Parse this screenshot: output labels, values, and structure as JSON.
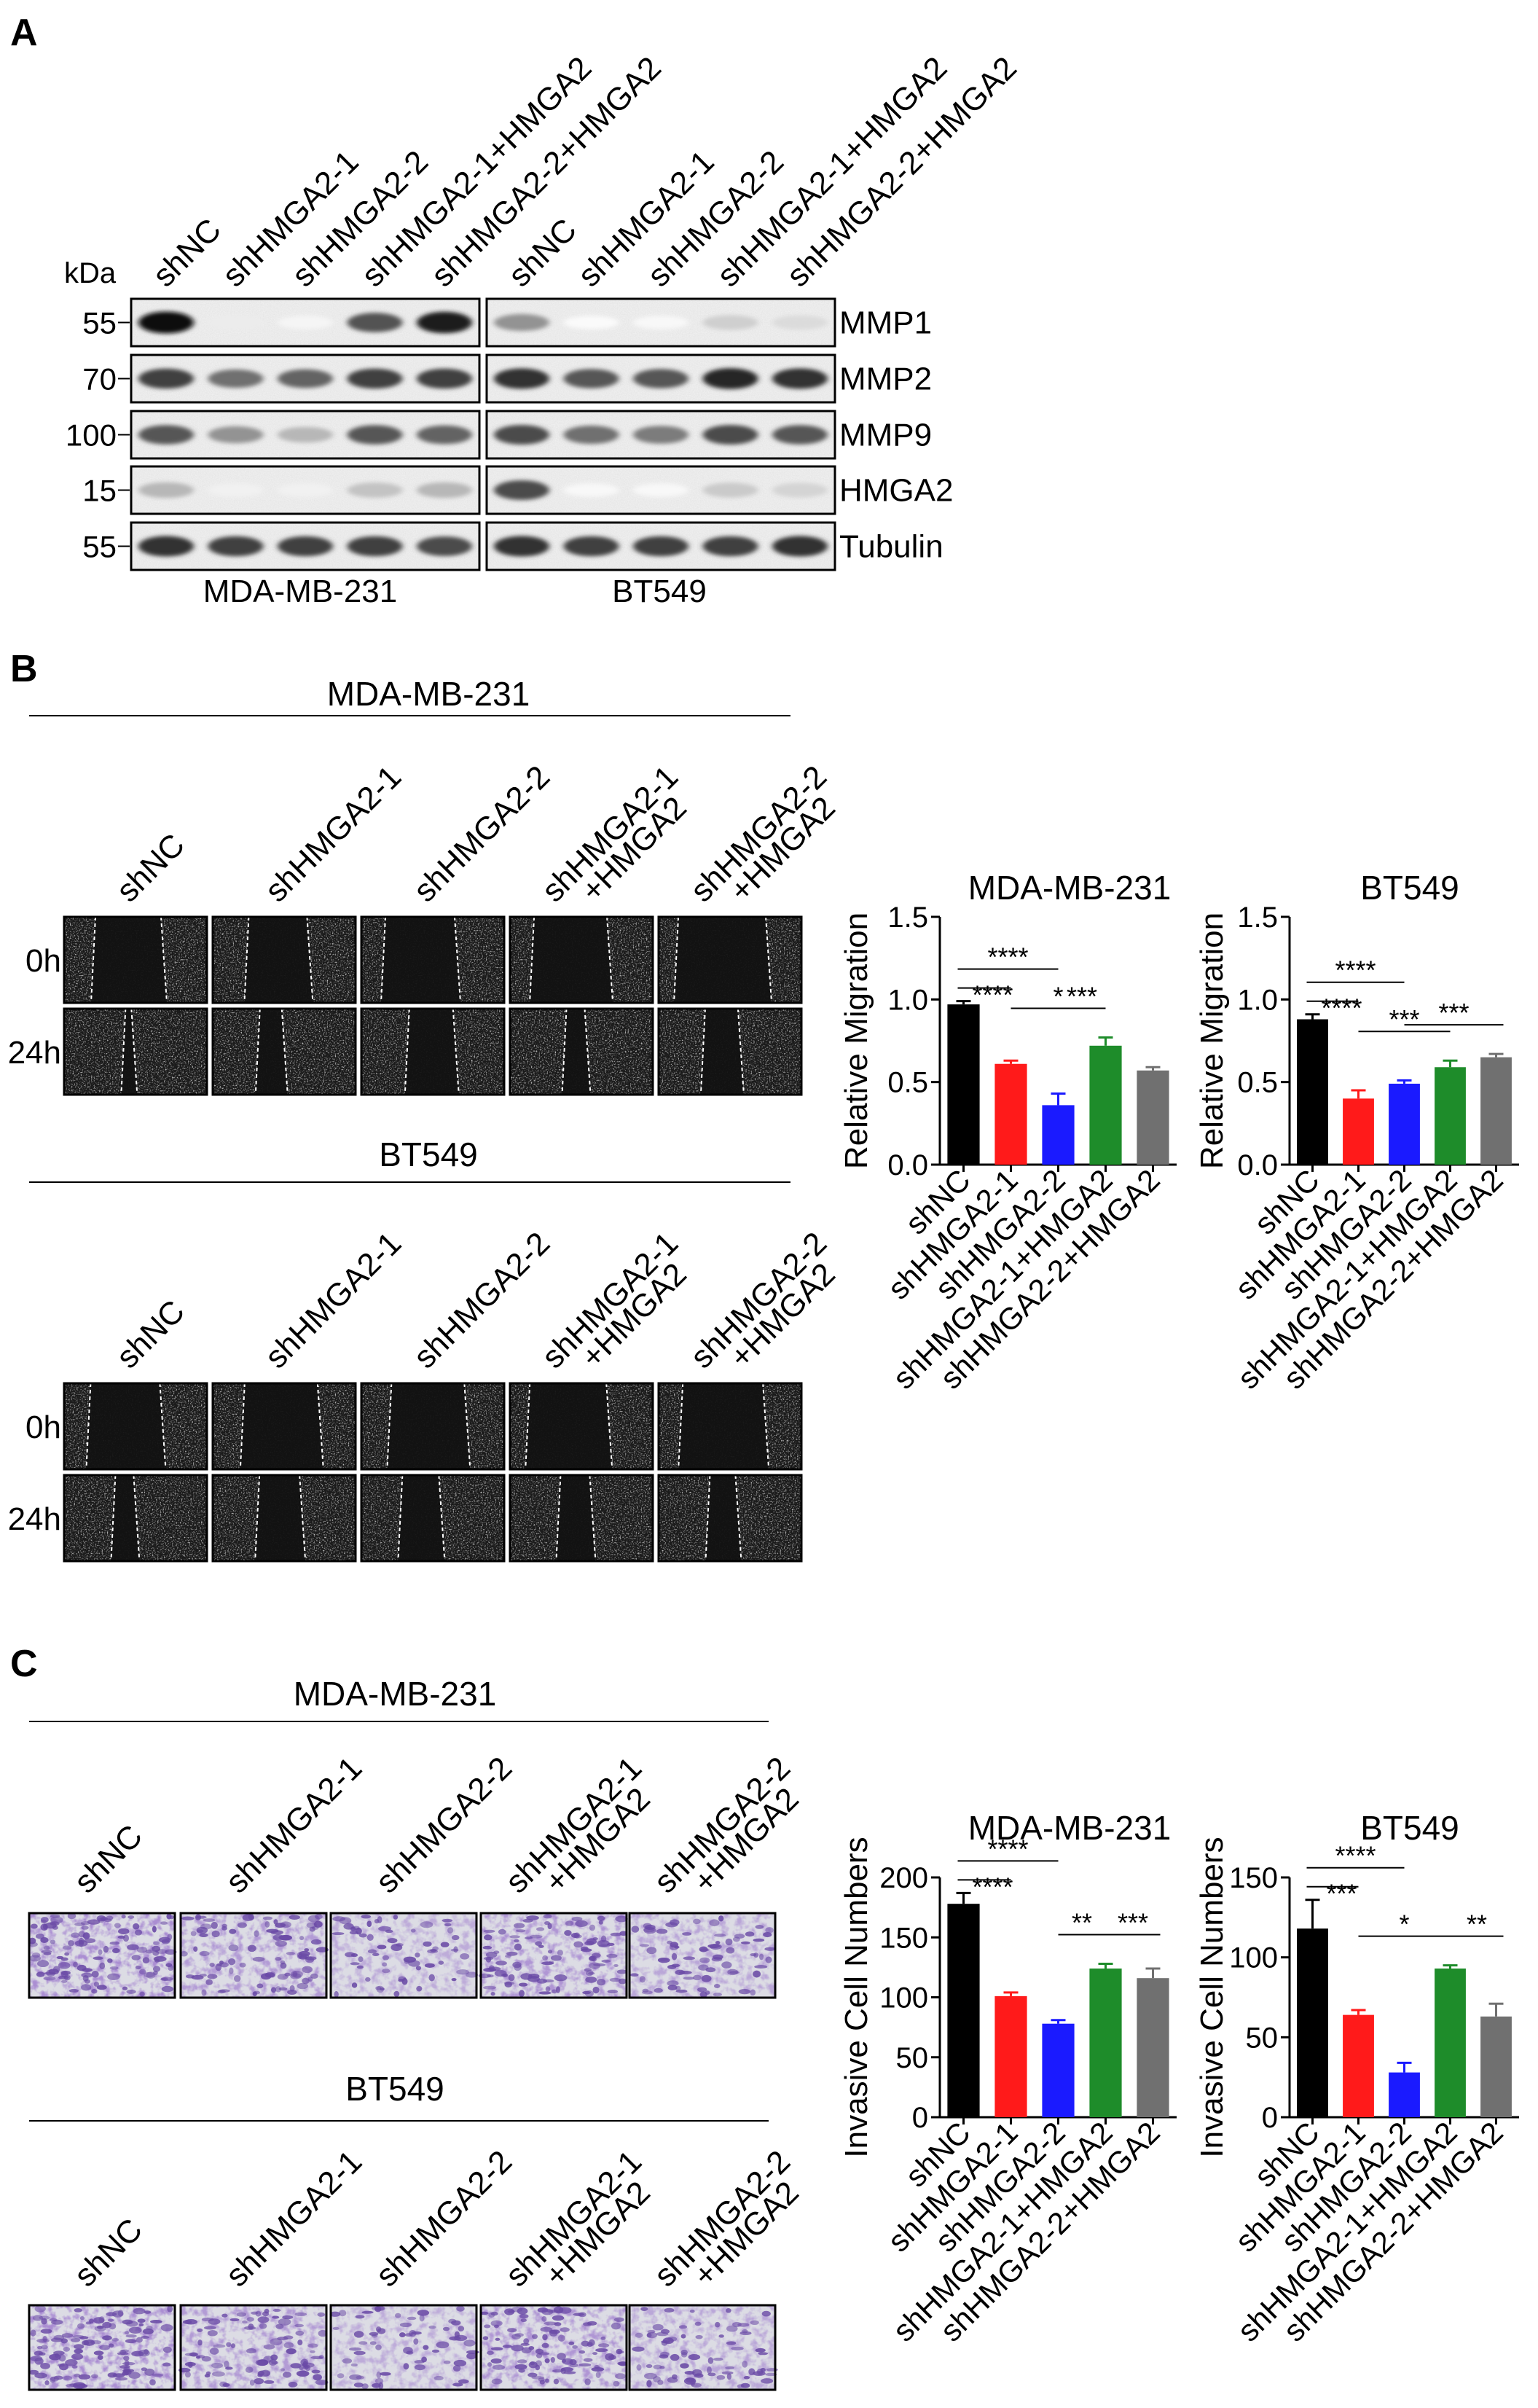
{
  "panel_labels": {
    "a": "A",
    "b": "B",
    "c": "C"
  },
  "western": {
    "kda_label": "kDa",
    "lanes": [
      "shNC",
      "shHMGA2-1",
      "shHMGA2-2",
      "shHMGA2-1+HMGA2",
      "shHMGA2-2+HMGA2"
    ],
    "cell_lines": [
      "MDA-MB-231",
      "BT549"
    ],
    "rows": [
      {
        "protein": "MMP1",
        "kda": "55",
        "intensity": [
          [
            1.0,
            0.08,
            0.04,
            0.72,
            0.95
          ],
          [
            0.45,
            0.02,
            0.03,
            0.2,
            0.15
          ]
        ]
      },
      {
        "protein": "MMP2",
        "kda": "70",
        "intensity": [
          [
            0.8,
            0.6,
            0.65,
            0.8,
            0.8
          ],
          [
            0.85,
            0.7,
            0.7,
            0.9,
            0.85
          ]
        ]
      },
      {
        "protein": "MMP9",
        "kda": "100",
        "intensity": [
          [
            0.7,
            0.45,
            0.3,
            0.7,
            0.65
          ],
          [
            0.75,
            0.6,
            0.55,
            0.75,
            0.7
          ]
        ]
      },
      {
        "protein": "HMGA2",
        "kda": "15",
        "intensity": [
          [
            0.3,
            0.06,
            0.06,
            0.25,
            0.3
          ],
          [
            0.75,
            0.03,
            0.03,
            0.22,
            0.18
          ]
        ]
      },
      {
        "protein": "Tubulin",
        "kda": "55",
        "intensity": [
          [
            0.85,
            0.8,
            0.8,
            0.8,
            0.75
          ],
          [
            0.85,
            0.8,
            0.8,
            0.8,
            0.85
          ]
        ]
      }
    ]
  },
  "wound": {
    "title_top": "MDA-MB-231",
    "title_bottom": "BT549",
    "conditions": [
      {
        "line1": "shNC",
        "line2": ""
      },
      {
        "line1": "shHMGA2-1",
        "line2": ""
      },
      {
        "line1": "shHMGA2-2",
        "line2": ""
      },
      {
        "line1": "shHMGA2-1",
        "line2": "+HMGA2"
      },
      {
        "line1": "shHMGA2-2",
        "line2": "+HMGA2"
      }
    ],
    "timepoints": [
      "0h",
      "24h"
    ]
  },
  "invasion": {
    "title_top": "MDA-MB-231",
    "title_bottom": "BT549",
    "conditions": [
      {
        "line1": "shNC",
        "line2": ""
      },
      {
        "line1": "shHMGA2-1",
        "line2": ""
      },
      {
        "line1": "shHMGA2-2",
        "line2": ""
      },
      {
        "line1": "shHMGA2-1",
        "line2": "+HMGA2"
      },
      {
        "line1": "shHMGA2-2",
        "line2": "+HMGA2"
      }
    ],
    "density": [
      0.85,
      0.6,
      0.3,
      0.7,
      0.4
    ]
  },
  "colors": {
    "shNC": "#000000",
    "shHMGA2-1": "#ff1a1a",
    "shHMGA2-2": "#1a1aff",
    "shHMGA2-1+HMGA2": "#1e8c2a",
    "shHMGA2-2+HMGA2": "#707070",
    "stain": "#6a4aa6"
  },
  "chart_data": [
    {
      "id": "migration-mda",
      "type": "bar",
      "title": "MDA-MB-231",
      "ylabel": "Relative Migration",
      "categories": [
        "shNC",
        "shHMGA2-1",
        "shHMGA2-2",
        "shHMGA2-1+HMGA2",
        "shHMGA2-2+HMGA2"
      ],
      "values": [
        0.97,
        0.61,
        0.36,
        0.72,
        0.57
      ],
      "errors": [
        0.02,
        0.02,
        0.07,
        0.05,
        0.02
      ],
      "ylim": [
        0,
        1.5
      ],
      "yticks": [
        "0.0",
        "0.5",
        "1.0",
        "1.5"
      ],
      "significance": [
        {
          "from": 0,
          "to": 1,
          "label": "****"
        },
        {
          "from": 0,
          "to": 2,
          "label": "****"
        },
        {
          "from": 1,
          "to": 3,
          "label": "*"
        },
        {
          "from": 2,
          "to": 3,
          "label": "***"
        }
      ]
    },
    {
      "id": "migration-bt",
      "type": "bar",
      "title": "BT549",
      "ylabel": "Relative Migration",
      "categories": [
        "shNC",
        "shHMGA2-1",
        "shHMGA2-2",
        "shHMGA2-1+HMGA2",
        "shHMGA2-2+HMGA2"
      ],
      "values": [
        0.88,
        0.4,
        0.49,
        0.59,
        0.65
      ],
      "errors": [
        0.03,
        0.05,
        0.02,
        0.04,
        0.02
      ],
      "ylim": [
        0,
        1.5
      ],
      "yticks": [
        "0.0",
        "0.5",
        "1.0",
        "1.5"
      ],
      "significance": [
        {
          "from": 0,
          "to": 1,
          "label": "****"
        },
        {
          "from": 0,
          "to": 2,
          "label": "****"
        },
        {
          "from": 1,
          "to": 3,
          "label": "***"
        },
        {
          "from": 2,
          "to": 4,
          "label": "***"
        }
      ]
    },
    {
      "id": "invasion-mda",
      "type": "bar",
      "title": "MDA-MB-231",
      "ylabel": "Invasive Cell Numbers",
      "categories": [
        "shNC",
        "shHMGA2-1",
        "shHMGA2-2",
        "shHMGA2-1+HMGA2",
        "shHMGA2-2+HMGA2"
      ],
      "values": [
        178,
        101,
        78,
        124,
        116
      ],
      "errors": [
        9,
        3,
        3,
        4,
        8
      ],
      "ylim": [
        0,
        200
      ],
      "yticks": [
        "0",
        "50",
        "100",
        "150",
        "200"
      ],
      "significance": [
        {
          "from": 0,
          "to": 1,
          "label": "****"
        },
        {
          "from": 0,
          "to": 2,
          "label": "****"
        },
        {
          "from": 2,
          "to": 3,
          "label": "**"
        },
        {
          "from": 3,
          "to": 4,
          "label": "***"
        }
      ]
    },
    {
      "id": "invasion-bt",
      "type": "bar",
      "title": "BT549",
      "ylabel": "Invasive Cell Numbers",
      "categories": [
        "shNC",
        "shHMGA2-1",
        "shHMGA2-2",
        "shHMGA2-1+HMGA2",
        "shHMGA2-2+HMGA2"
      ],
      "values": [
        118,
        64,
        28,
        93,
        63
      ],
      "errors": [
        18,
        3,
        6,
        2,
        8
      ],
      "ylim": [
        0,
        150
      ],
      "yticks": [
        "0",
        "50",
        "100",
        "150"
      ],
      "significance": [
        {
          "from": 0,
          "to": 1,
          "label": "***"
        },
        {
          "from": 0,
          "to": 2,
          "label": "****"
        },
        {
          "from": 1,
          "to": 3,
          "label": "*"
        },
        {
          "from": 3,
          "to": 4,
          "label": "**"
        }
      ]
    }
  ]
}
